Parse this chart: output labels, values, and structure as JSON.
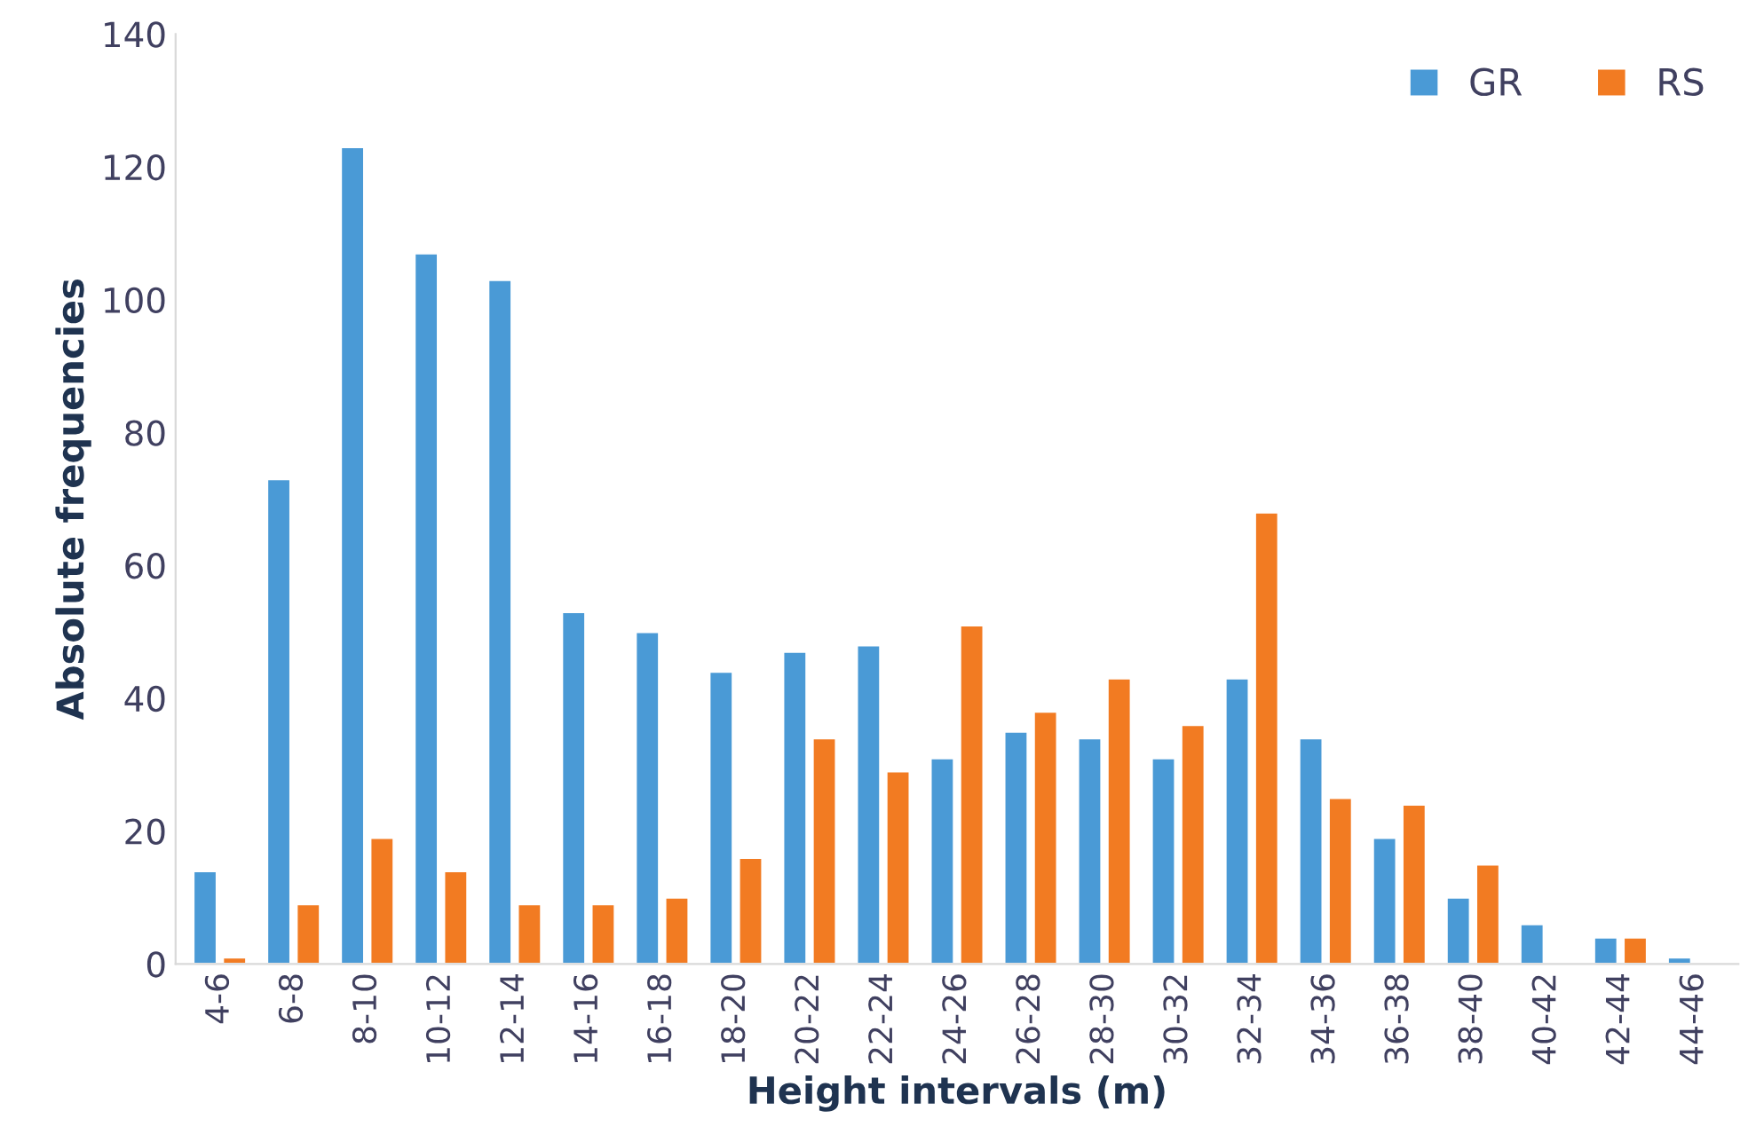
{
  "chart_data": {
    "type": "bar",
    "xlabel": "Height intervals (m)",
    "ylabel": "Absolute frequencies",
    "categories": [
      "4-6",
      "6-8",
      "8-10",
      "10-12",
      "12-14",
      "14-16",
      "16-18",
      "18-20",
      "20-22",
      "22-24",
      "24-26",
      "26-28",
      "28-30",
      "30-32",
      "32-34",
      "34-36",
      "36-38",
      "38-40",
      "40-42",
      "42-44",
      "44-46"
    ],
    "series": [
      {
        "name": "GR",
        "color": "#4a9ad6",
        "values": [
          14,
          73,
          123,
          107,
          103,
          53,
          50,
          44,
          47,
          48,
          31,
          35,
          34,
          31,
          43,
          34,
          19,
          10,
          6,
          4,
          1
        ]
      },
      {
        "name": "RS",
        "color": "#f27b22",
        "values": [
          1,
          9,
          19,
          14,
          9,
          9,
          10,
          16,
          34,
          29,
          51,
          38,
          43,
          36,
          68,
          25,
          24,
          15,
          null,
          4,
          null
        ]
      }
    ],
    "ylim": [
      0,
      140
    ],
    "yticks": [
      0,
      20,
      40,
      60,
      80,
      100,
      120,
      140
    ],
    "grid": false,
    "legend": "top right"
  }
}
